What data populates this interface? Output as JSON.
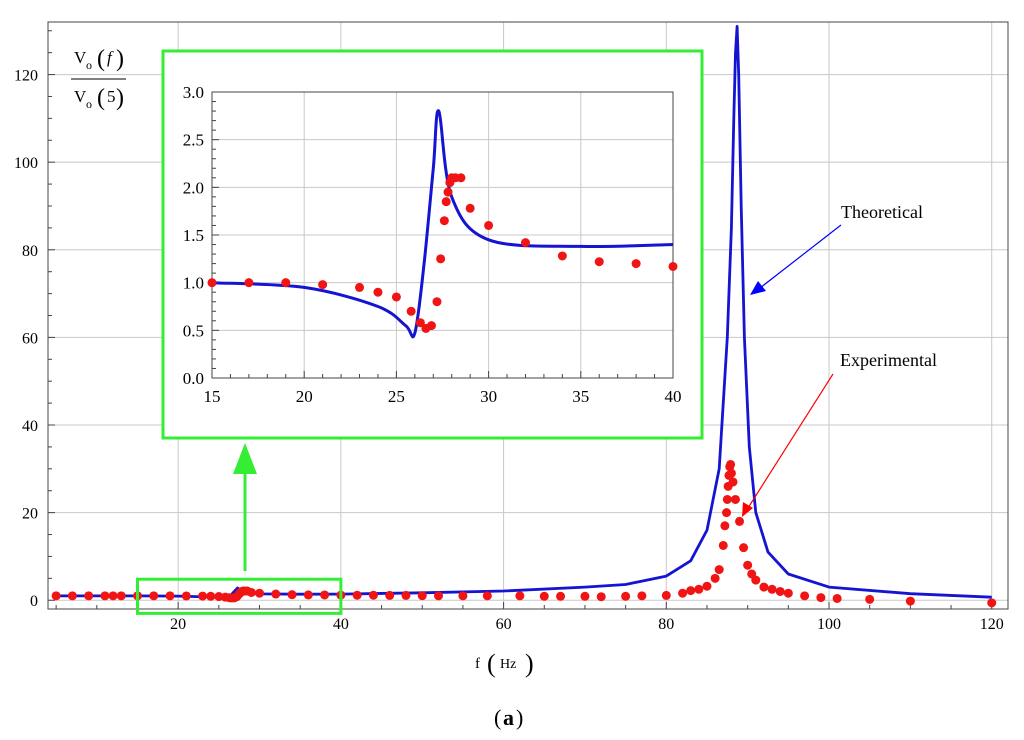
{
  "chart_data": [
    {
      "panel": "main",
      "type": "line+scatter",
      "ylabel": {
        "numerator": "V",
        "numerator_sub": "o",
        "numerator_arg": "f",
        "denominator": "V",
        "denominator_sub": "o",
        "denominator_arg": "5"
      },
      "xlabel": {
        "var": "f",
        "unit": "Hz"
      },
      "xlim": [
        4,
        122
      ],
      "ylim": [
        -2,
        132
      ],
      "xticks": [
        20,
        40,
        60,
        80,
        100,
        120
      ],
      "yticks": [
        0,
        20,
        40,
        60,
        80,
        100,
        120
      ],
      "grid": true,
      "series": [
        {
          "name": "Theoretical",
          "kind": "line",
          "color": "#1414d2",
          "x": [
            5,
            10,
            15,
            20,
            24,
            25.5,
            26,
            26.5,
            27,
            27.3,
            28,
            30,
            35,
            40,
            50,
            60,
            70,
            75,
            80,
            83,
            85,
            86.5,
            87.5,
            88,
            88.3,
            88.5,
            88.7,
            88.9,
            89.2,
            89.6,
            90.2,
            91,
            92.5,
            95,
            100,
            110,
            120
          ],
          "y": [
            1.0,
            1.0,
            1.0,
            0.95,
            0.75,
            0.55,
            0.47,
            1.2,
            2.2,
            2.8,
            1.9,
            1.45,
            1.38,
            1.4,
            1.7,
            2.1,
            3.0,
            3.6,
            5.5,
            9,
            16,
            30,
            60,
            85,
            110,
            125,
            131,
            120,
            90,
            60,
            35,
            20,
            11,
            6,
            3,
            1.5,
            0.7
          ]
        },
        {
          "name": "Experimental",
          "kind": "scatter",
          "color": "#f01414",
          "x": [
            5,
            7,
            9,
            11,
            12,
            13,
            15,
            17,
            19,
            21,
            23,
            24,
            25,
            25.8,
            26.3,
            26.6,
            26.9,
            27.2,
            27.4,
            27.6,
            27.7,
            27.8,
            27.9,
            28,
            28.2,
            28.5,
            29,
            30,
            32,
            34,
            36,
            38,
            40,
            42,
            44,
            46,
            48,
            50,
            52,
            55,
            58,
            62,
            65,
            67,
            70,
            72,
            75,
            77,
            80,
            82,
            83,
            84,
            85,
            86,
            86.5,
            87,
            87.2,
            87.4,
            87.5,
            87.6,
            87.7,
            87.8,
            87.9,
            88,
            88.2,
            88.5,
            89,
            89.5,
            90,
            90.5,
            91,
            92,
            93,
            94,
            95,
            97,
            99,
            101,
            105,
            110,
            120
          ],
          "y": [
            1.0,
            1.0,
            1.0,
            1.0,
            1.0,
            1.0,
            1.0,
            1.0,
            1.0,
            0.98,
            0.95,
            0.9,
            0.85,
            0.7,
            0.58,
            0.52,
            0.55,
            0.8,
            1.25,
            1.65,
            1.85,
            1.95,
            2.05,
            2.1,
            2.1,
            2.1,
            1.78,
            1.6,
            1.42,
            1.28,
            1.22,
            1.2,
            1.17,
            1.15,
            1.15,
            1.1,
            1.1,
            1.05,
            1.0,
            1.0,
            1.0,
            1.0,
            0.9,
            0.9,
            0.9,
            0.8,
            0.9,
            1.0,
            1.1,
            1.6,
            2.2,
            2.5,
            3.2,
            5.0,
            7.0,
            12.5,
            17,
            20,
            23,
            26,
            28.5,
            30.5,
            31,
            29,
            27,
            23,
            18,
            12,
            8,
            6,
            4.6,
            3.0,
            2.5,
            2.0,
            1.6,
            1.0,
            0.6,
            0.4,
            0.2,
            -0.2,
            -0.6
          ]
        }
      ],
      "annotations": [
        {
          "text": "Theoretical",
          "color": "#0000ff"
        },
        {
          "text": "Experimental",
          "color": "#ff0000"
        }
      ],
      "zoom_box": {
        "x": [
          15,
          40
        ],
        "color": "#33ee33"
      }
    },
    {
      "panel": "inset",
      "type": "line+scatter",
      "xlim": [
        15,
        40
      ],
      "ylim": [
        0,
        3.0
      ],
      "xticks": [
        15,
        20,
        25,
        30,
        35,
        40
      ],
      "yticks": [
        "0.0",
        "0.5",
        "1.0",
        "1.5",
        "2.0",
        "2.5",
        "3.0"
      ],
      "grid": true,
      "frame_color": "#33ee33"
    }
  ],
  "caption": {
    "open": "(",
    "letter": "a",
    "close": ")"
  }
}
